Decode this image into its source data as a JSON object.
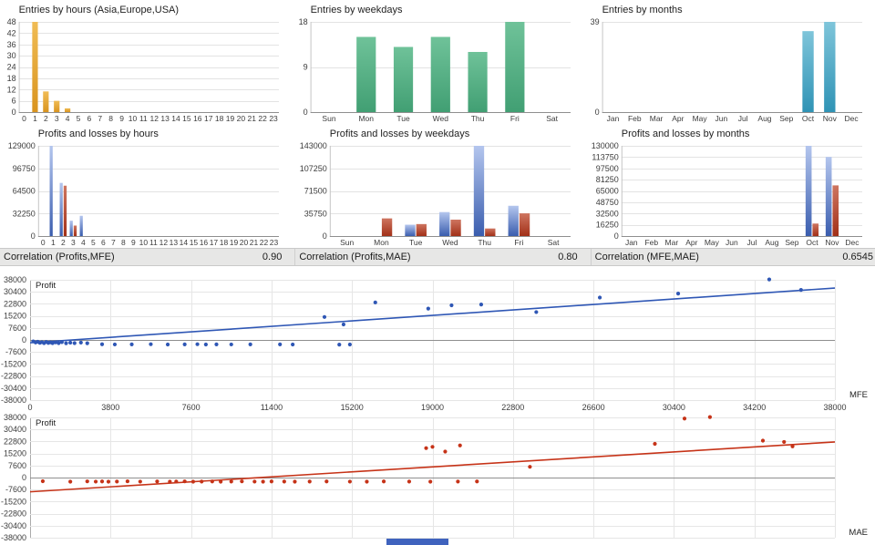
{
  "correlations": [
    {
      "label": "Correlation (Profits,MFE)",
      "value": "0.90"
    },
    {
      "label": "Correlation (Profits,MAE)",
      "value": "0.80"
    },
    {
      "label": "Correlation (MFE,MAE)",
      "value": "0.6545"
    }
  ],
  "chart_data": [
    {
      "type": "bar",
      "title": "Entries by hours (Asia,Europe,USA)",
      "categories": [
        "0",
        "1",
        "2",
        "3",
        "4",
        "5",
        "6",
        "7",
        "8",
        "9",
        "10",
        "11",
        "12",
        "13",
        "14",
        "15",
        "16",
        "17",
        "18",
        "19",
        "20",
        "21",
        "22",
        "23"
      ],
      "values": [
        0,
        48,
        11,
        6,
        2,
        0,
        0,
        0,
        0,
        0,
        0,
        0,
        0,
        0,
        0,
        0,
        0,
        0,
        0,
        0,
        0,
        0,
        0,
        0
      ],
      "ylim": [
        0,
        48
      ],
      "ytick_step": 6,
      "bar_colors": [
        "#F0BC55",
        "#D9941F"
      ],
      "grid": true
    },
    {
      "type": "bar",
      "title": "Entries by weekdays",
      "categories": [
        "Sun",
        "Mon",
        "Tue",
        "Wed",
        "Thu",
        "Fri",
        "Sat"
      ],
      "values": [
        0,
        15,
        13,
        15,
        12,
        18,
        0
      ],
      "ylim": [
        0,
        18
      ],
      "ytick_step": 9,
      "bar_colors": [
        "#6FC299",
        "#419F73"
      ],
      "grid": true
    },
    {
      "type": "bar",
      "title": "Entries by months",
      "categories": [
        "Jan",
        "Feb",
        "Mar",
        "Apr",
        "May",
        "Jun",
        "Jul",
        "Aug",
        "Sep",
        "Oct",
        "Nov",
        "Dec"
      ],
      "values": [
        0,
        0,
        0,
        0,
        0,
        0,
        0,
        0,
        0,
        35,
        39,
        0
      ],
      "ylim": [
        0,
        39
      ],
      "ytick_step": 39,
      "bar_colors": [
        "#7FC5DA",
        "#2F93B5"
      ],
      "grid": true
    },
    {
      "type": "bar",
      "title": "Profits and losses by hours",
      "categories": [
        "0",
        "1",
        "2",
        "3",
        "4",
        "5",
        "6",
        "7",
        "8",
        "9",
        "10",
        "11",
        "12",
        "13",
        "14",
        "15",
        "16",
        "17",
        "18",
        "19",
        "20",
        "21",
        "22",
        "23"
      ],
      "series": [
        {
          "name": "Profits",
          "colors": [
            "#B4C6EE",
            "#3A5DAE"
          ],
          "values": [
            0,
            129000,
            76000,
            22000,
            29000,
            0,
            0,
            0,
            0,
            0,
            0,
            0,
            0,
            0,
            0,
            0,
            0,
            0,
            0,
            0,
            0,
            0,
            0,
            0
          ]
        },
        {
          "name": "Losses",
          "colors": [
            "#CE7560",
            "#A23018"
          ],
          "values": [
            0,
            0,
            72000,
            15000,
            0,
            0,
            0,
            0,
            0,
            0,
            0,
            0,
            0,
            0,
            0,
            0,
            0,
            0,
            0,
            0,
            0,
            0,
            0,
            0
          ]
        }
      ],
      "ylim": [
        0,
        129000
      ],
      "ytick_step": 32250,
      "grid": true
    },
    {
      "type": "bar",
      "title": "Profits and losses by weekdays",
      "categories": [
        "Sun",
        "Mon",
        "Tue",
        "Wed",
        "Thu",
        "Fri",
        "Sat"
      ],
      "series": [
        {
          "name": "Profits",
          "colors": [
            "#B4C6EE",
            "#3A5DAE"
          ],
          "values": [
            0,
            0,
            18000,
            38000,
            143000,
            48000,
            0
          ]
        },
        {
          "name": "Losses",
          "colors": [
            "#CE7560",
            "#A23018"
          ],
          "values": [
            0,
            28000,
            19000,
            26000,
            12000,
            36000,
            0
          ]
        }
      ],
      "ylim": [
        0,
        143000
      ],
      "ytick_step": 35750,
      "grid": true
    },
    {
      "type": "bar",
      "title": "Profits and losses by months",
      "categories": [
        "Jan",
        "Feb",
        "Mar",
        "Apr",
        "May",
        "Jun",
        "Jul",
        "Aug",
        "Sep",
        "Oct",
        "Nov",
        "Dec"
      ],
      "series": [
        {
          "name": "Profits",
          "colors": [
            "#B4C6EE",
            "#3A5DAE"
          ],
          "values": [
            0,
            0,
            0,
            0,
            0,
            0,
            0,
            0,
            0,
            130000,
            114000,
            0
          ]
        },
        {
          "name": "Losses",
          "colors": [
            "#CE7560",
            "#A23018"
          ],
          "values": [
            0,
            0,
            0,
            0,
            0,
            0,
            0,
            0,
            0,
            18000,
            73000,
            0
          ]
        }
      ],
      "ylim": [
        0,
        130000
      ],
      "ytick_step": 16250,
      "grid": true
    },
    {
      "type": "scatter",
      "ylabel": "Profit",
      "xlabel": "MFE",
      "xlim": [
        0,
        38000
      ],
      "xtick_step": 3800,
      "ylim": [
        -38000,
        38000
      ],
      "ytick_step": 7600,
      "color": "#2F57B5",
      "trend": [
        [
          0,
          -1800
        ],
        [
          38000,
          32800
        ]
      ],
      "grid": true,
      "points": [
        [
          150,
          -900
        ],
        [
          260,
          -1600
        ],
        [
          360,
          -1150
        ],
        [
          460,
          -1800
        ],
        [
          560,
          -1400
        ],
        [
          660,
          -2000
        ],
        [
          760,
          -1250
        ],
        [
          860,
          -1900
        ],
        [
          960,
          -1500
        ],
        [
          1060,
          -2050
        ],
        [
          1200,
          -1500
        ],
        [
          1350,
          -2000
        ],
        [
          1500,
          -1400
        ],
        [
          1700,
          -2100
        ],
        [
          1900,
          -1700
        ],
        [
          2100,
          -2000
        ],
        [
          2400,
          -1650
        ],
        [
          2700,
          -2100
        ],
        [
          3400,
          -2750
        ],
        [
          4000,
          -2850
        ],
        [
          4800,
          -2800
        ],
        [
          5700,
          -2700
        ],
        [
          6500,
          -2900
        ],
        [
          7300,
          -2800
        ],
        [
          7900,
          -2700
        ],
        [
          8300,
          -2900
        ],
        [
          8800,
          -2800
        ],
        [
          9500,
          -2850
        ],
        [
          10400,
          -2800
        ],
        [
          11800,
          -2800
        ],
        [
          12400,
          -2900
        ],
        [
          14600,
          -2950
        ],
        [
          15100,
          -2900
        ],
        [
          13900,
          14500
        ],
        [
          14800,
          9800
        ],
        [
          16300,
          23700
        ],
        [
          18800,
          19800
        ],
        [
          19900,
          21900
        ],
        [
          21300,
          22400
        ],
        [
          23900,
          17600
        ],
        [
          26900,
          26800
        ],
        [
          30600,
          29300
        ],
        [
          34900,
          38200
        ],
        [
          36400,
          31600
        ]
      ]
    },
    {
      "type": "scatter",
      "ylabel": "Profit",
      "xlabel": "MAE",
      "xlim": [
        0,
        38000
      ],
      "xtick_step": 3800,
      "ylim": [
        -38000,
        38000
      ],
      "ytick_step": 7600,
      "color": "#C63318",
      "trend": [
        [
          0,
          -9000
        ],
        [
          38000,
          22500
        ]
      ],
      "grid": true,
      "points": [
        [
          600,
          -2300
        ],
        [
          1900,
          -2600
        ],
        [
          2700,
          -2400
        ],
        [
          3100,
          -2550
        ],
        [
          3400,
          -2450
        ],
        [
          3700,
          -2600
        ],
        [
          4100,
          -2500
        ],
        [
          4600,
          -2350
        ],
        [
          5200,
          -2550
        ],
        [
          6000,
          -2450
        ],
        [
          6600,
          -2600
        ],
        [
          6900,
          -2500
        ],
        [
          7300,
          -2400
        ],
        [
          7700,
          -2600
        ],
        [
          8100,
          -2500
        ],
        [
          8600,
          -2450
        ],
        [
          9000,
          -2600
        ],
        [
          9500,
          -2500
        ],
        [
          10000,
          -2400
        ],
        [
          10600,
          -2550
        ],
        [
          11000,
          -2600
        ],
        [
          11400,
          -2450
        ],
        [
          12000,
          -2500
        ],
        [
          12500,
          -2600
        ],
        [
          13200,
          -2500
        ],
        [
          14000,
          -2450
        ],
        [
          15100,
          -2550
        ],
        [
          15900,
          -2600
        ],
        [
          16700,
          -2450
        ],
        [
          17900,
          -2500
        ],
        [
          18900,
          -2600
        ],
        [
          20200,
          -2500
        ],
        [
          21100,
          -2450
        ],
        [
          18700,
          18600
        ],
        [
          19000,
          19400
        ],
        [
          19600,
          16400
        ],
        [
          20300,
          20300
        ],
        [
          23600,
          6800
        ],
        [
          29500,
          21300
        ],
        [
          30900,
          37300
        ],
        [
          32100,
          38200
        ],
        [
          34600,
          23300
        ],
        [
          35600,
          22500
        ],
        [
          36000,
          19700
        ]
      ]
    }
  ]
}
